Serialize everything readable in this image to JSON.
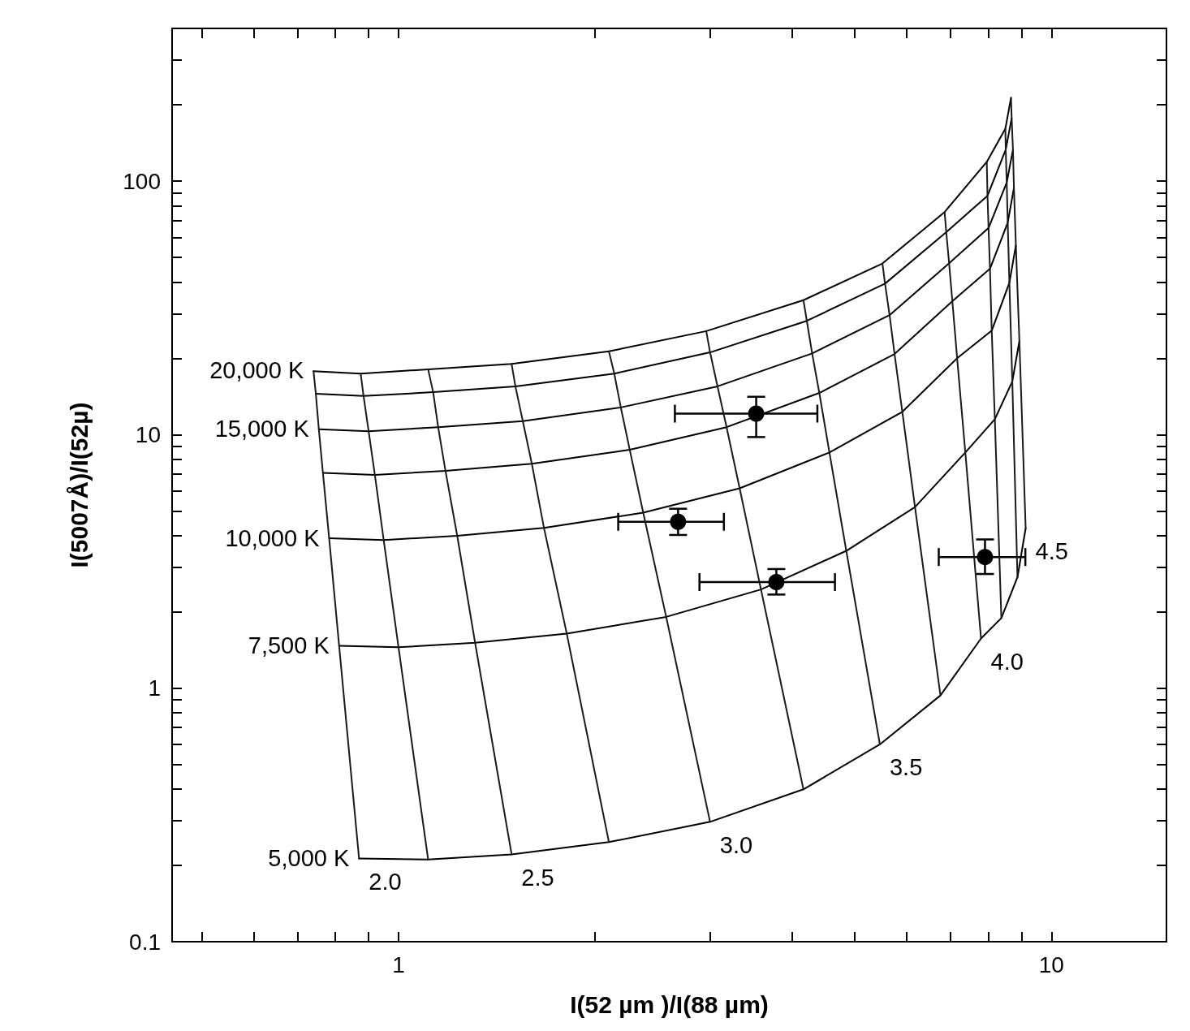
{
  "chart_data": {
    "type": "line",
    "xlabel": "I(52 µm )/I(88 µm)",
    "ylabel": "I(5007Å)/I(52µ)",
    "log": "xy",
    "grid": false,
    "legend": false,
    "marker": "none",
    "line_style": "solid",
    "xlim": [
      0.45,
      15
    ],
    "ylim": [
      0.1,
      400
    ],
    "xticks": [
      {
        "value": 0.5,
        "label": null
      },
      {
        "value": 0.6,
        "label": null
      },
      {
        "value": 0.7,
        "label": null
      },
      {
        "value": 0.8,
        "label": null
      },
      {
        "value": 0.9,
        "label": null
      },
      1,
      {
        "value": 2,
        "label": null
      },
      {
        "value": 3,
        "label": null
      },
      {
        "value": 4,
        "label": null
      },
      {
        "value": 5,
        "label": null
      },
      {
        "value": 6,
        "label": null
      },
      {
        "value": 7,
        "label": null
      },
      {
        "value": 8,
        "label": null
      },
      {
        "value": 9,
        "label": null
      },
      10
    ],
    "yticks": [
      0.1,
      {
        "value": 0.2,
        "label": null
      },
      {
        "value": 0.3,
        "label": null
      },
      {
        "value": 0.4,
        "label": null
      },
      {
        "value": 0.5,
        "label": null
      },
      {
        "value": 0.6,
        "label": null
      },
      {
        "value": 0.7,
        "label": null
      },
      {
        "value": 0.8,
        "label": null
      },
      {
        "value": 0.9,
        "label": null
      },
      1,
      {
        "value": 2,
        "label": null
      },
      {
        "value": 3,
        "label": null
      },
      {
        "value": 4,
        "label": null
      },
      {
        "value": 5,
        "label": null
      },
      {
        "value": 6,
        "label": null
      },
      {
        "value": 7,
        "label": null
      },
      {
        "value": 8,
        "label": null
      },
      {
        "value": 9,
        "label": null
      },
      10,
      {
        "value": 20,
        "label": null
      },
      {
        "value": 30,
        "label": null
      },
      {
        "value": 40,
        "label": null
      },
      {
        "value": 50,
        "label": null
      },
      {
        "value": 60,
        "label": null
      },
      {
        "value": 70,
        "label": null
      },
      {
        "value": 80,
        "label": null
      },
      {
        "value": 90,
        "label": null
      },
      100,
      {
        "value": 200,
        "label": null
      },
      {
        "value": 300,
        "label": null
      }
    ],
    "series": [
      {
        "name": "20,000 K",
        "color": "#000000",
        "x": [
          0.741,
          0.875,
          1.11,
          1.49,
          2.1,
          2.96,
          4.17,
          5.51,
          6.86,
          7.96,
          8.5,
          8.67
        ],
        "values": [
          17.8,
          17.4,
          18.1,
          19.0,
          21.3,
          25.6,
          33.9,
          47.3,
          75.5,
          119,
          161,
          213
        ]
      },
      {
        "color": "#000000",
        "x": [
          0.747,
          0.884,
          1.13,
          1.51,
          2.14,
          3.0,
          4.22,
          5.56,
          6.9,
          7.98,
          8.51,
          8.69
        ],
        "values": [
          14.5,
          14.2,
          14.7,
          15.5,
          17.4,
          21.1,
          28.1,
          39.4,
          62.9,
          87.5,
          133,
          177
        ]
      },
      {
        "name": "15,000 K",
        "color": "#000000",
        "x": [
          0.755,
          0.9,
          1.15,
          1.55,
          2.19,
          3.08,
          4.3,
          5.65,
          6.97,
          8.01,
          8.54,
          8.73
        ],
        "values": [
          10.5,
          10.3,
          10.7,
          11.3,
          12.8,
          15.5,
          20.9,
          29.6,
          47.4,
          65.3,
          98.6,
          133
        ]
      },
      {
        "color": "#000000",
        "x": [
          0.766,
          0.92,
          1.18,
          1.6,
          2.26,
          3.18,
          4.41,
          5.75,
          7.05,
          8.05,
          8.57,
          8.76
        ],
        "values": [
          7.06,
          6.93,
          7.2,
          7.68,
          8.71,
          10.7,
          14.6,
          20.8,
          33.6,
          45.1,
          68.5,
          94.0
        ]
      },
      {
        "name": "10,000 K",
        "color": "#000000",
        "x": [
          0.783,
          0.949,
          1.23,
          1.67,
          2.37,
          3.33,
          4.57,
          5.91,
          7.17,
          8.1,
          8.62,
          8.82
        ],
        "values": [
          3.9,
          3.84,
          3.99,
          4.29,
          4.92,
          6.14,
          8.5,
          12.3,
          20.0,
          25.7,
          39.7,
          55.7
        ]
      },
      {
        "name": "7,500 K",
        "color": "#000000",
        "x": [
          0.811,
          1.0,
          1.31,
          1.81,
          2.57,
          3.59,
          4.85,
          6.18,
          7.38,
          8.19,
          8.71,
          8.93
        ],
        "values": [
          1.47,
          1.45,
          1.51,
          1.64,
          1.91,
          2.45,
          3.48,
          5.18,
          8.5,
          11.5,
          16.2,
          23.4
        ]
      },
      {
        "name": "5,000 K",
        "color": "#000000",
        "x": [
          0.87,
          1.11,
          1.49,
          2.1,
          3.0,
          4.17,
          5.46,
          6.76,
          7.8,
          8.38,
          8.87,
          9.13
        ],
        "values": [
          0.213,
          0.211,
          0.221,
          0.247,
          0.297,
          0.399,
          0.6,
          0.936,
          1.57,
          1.89,
          2.74,
          4.27
        ]
      },
      {
        "name": "2.0",
        "color": "#1a1a1a",
        "x": [
          0.87,
          0.811,
          0.783,
          0.766,
          0.755,
          0.747,
          0.741
        ],
        "values": [
          0.213,
          1.47,
          3.9,
          7.06,
          10.5,
          14.5,
          17.8
        ]
      },
      {
        "color": "#1a1a1a",
        "x": [
          1.11,
          1.0,
          0.949,
          0.92,
          0.9,
          0.884,
          0.875
        ],
        "values": [
          0.211,
          1.45,
          3.84,
          6.93,
          10.3,
          14.2,
          17.4
        ]
      },
      {
        "name": "2.5",
        "color": "#1a1a1a",
        "x": [
          1.49,
          1.31,
          1.23,
          1.18,
          1.15,
          1.13,
          1.11
        ],
        "values": [
          0.221,
          1.51,
          3.99,
          7.2,
          10.7,
          14.7,
          18.1
        ]
      },
      {
        "color": "#1a1a1a",
        "x": [
          2.1,
          1.81,
          1.67,
          1.6,
          1.55,
          1.51,
          1.49
        ],
        "values": [
          0.247,
          1.64,
          4.29,
          7.68,
          11.3,
          15.5,
          19.0
        ]
      },
      {
        "name": "3.0",
        "color": "#1a1a1a",
        "x": [
          3.0,
          2.57,
          2.37,
          2.26,
          2.19,
          2.14,
          2.1
        ],
        "values": [
          0.297,
          1.91,
          4.92,
          8.71,
          12.8,
          17.4,
          21.3
        ]
      },
      {
        "color": "#1a1a1a",
        "x": [
          4.17,
          3.59,
          3.33,
          3.18,
          3.08,
          3.0,
          2.96
        ],
        "values": [
          0.399,
          2.45,
          6.14,
          10.7,
          15.5,
          21.1,
          25.6
        ]
      },
      {
        "name": "3.5",
        "color": "#1a1a1a",
        "x": [
          5.46,
          4.85,
          4.57,
          4.41,
          4.3,
          4.22,
          4.17
        ],
        "values": [
          0.6,
          3.48,
          8.5,
          14.6,
          20.9,
          28.1,
          33.9
        ]
      },
      {
        "color": "#1a1a1a",
        "x": [
          6.76,
          6.18,
          5.91,
          5.75,
          5.65,
          5.56,
          5.51
        ],
        "values": [
          0.936,
          5.18,
          12.3,
          20.8,
          29.6,
          39.4,
          47.3
        ]
      },
      {
        "name": "4.0",
        "color": "#1a1a1a",
        "x": [
          7.8,
          7.38,
          7.17,
          7.05,
          6.97,
          6.9,
          6.86
        ],
        "values": [
          1.57,
          8.5,
          20.0,
          33.6,
          47.4,
          62.9,
          75.5
        ]
      },
      {
        "color": "#1a1a1a",
        "x": [
          8.38,
          8.19,
          8.1,
          8.05,
          8.01,
          7.98,
          7.96
        ],
        "values": [
          1.89,
          11.5,
          25.7,
          45.1,
          65.3,
          87.5,
          119
        ]
      },
      {
        "color": "#1a1a1a",
        "x": [
          8.87,
          8.71,
          8.62,
          8.57,
          8.54,
          8.51,
          8.5
        ],
        "values": [
          2.74,
          16.2,
          39.7,
          68.5,
          98.6,
          133,
          161
        ]
      },
      {
        "name": "4.5",
        "color": "#1a1a1a",
        "x": [
          9.13,
          8.93,
          8.82,
          8.76,
          8.73,
          8.69,
          8.67
        ],
        "values": [
          4.27,
          23.4,
          55.7,
          94.0,
          133,
          177,
          213
        ]
      },
      {
        "type": "scatter",
        "marker": "circle",
        "color": "#000000",
        "x": [
          3.53,
          2.68,
          3.79,
          7.91
        ],
        "values": [
          12.1,
          4.53,
          2.62,
          3.29
        ],
        "errors": [
          [
            9.78,
            14.1
          ],
          [
            4.02,
            5.1
          ],
          [
            2.34,
            2.95
          ],
          [
            2.82,
            3.86
          ]
        ],
        "xerrors": [
          [
            2.65,
            4.38
          ],
          [
            2.17,
            3.15
          ],
          [
            2.89,
            4.66
          ],
          [
            6.72,
            9.12
          ]
        ]
      }
    ]
  }
}
